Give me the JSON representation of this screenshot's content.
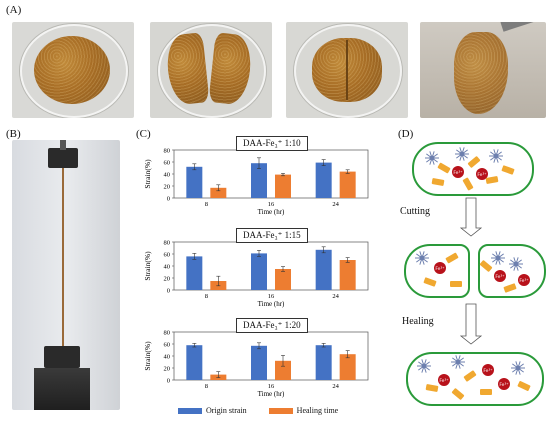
{
  "panels": {
    "A": "(A)",
    "B": "(B)",
    "C": "(C)",
    "D": "(D)"
  },
  "colors": {
    "origin": "#4472c4",
    "healing": "#ed7d31",
    "membrane": "#2a9a3a",
    "ferric": "#b8121b",
    "ligand": "#f0a830",
    "complex": "#6c7fae"
  },
  "charts": [
    {
      "title": "DAA-Fe₃⁺ 1:10",
      "ylabel": "Strain(%)",
      "xlabel": "Time (hr)",
      "yticks": [
        "0",
        "20",
        "40",
        "60",
        "80"
      ],
      "categories": [
        "8",
        "16",
        "24"
      ]
    },
    {
      "title": "DAA-Fe₃⁺ 1:15",
      "ylabel": "Strain(%)",
      "xlabel": "Time (hr)",
      "yticks": [
        "0",
        "20",
        "40",
        "60",
        "80"
      ],
      "categories": [
        "8",
        "16",
        "24"
      ]
    },
    {
      "title": "DAA-Fe₃⁺ 1:20",
      "ylabel": "Strain(%)",
      "xlabel": "Time (hr)",
      "yticks": [
        "0",
        "20",
        "40",
        "60",
        "80"
      ],
      "categories": [
        "8",
        "16",
        "24"
      ]
    }
  ],
  "legend": {
    "origin": "Origin strain",
    "healing": "Healing time"
  },
  "diagram": {
    "cutting": "Cutting",
    "healing": "Healing",
    "ion_label": "Fe³⁺"
  },
  "chart_data": [
    {
      "type": "bar",
      "title": "DAA-Fe₃⁺ 1:10",
      "categories": [
        "8",
        "16",
        "24"
      ],
      "xlabel": "Time (hr)",
      "ylabel": "Strain(%)",
      "ylim": [
        0,
        80
      ],
      "series": [
        {
          "name": "Origin strain",
          "values": [
            52,
            58,
            59
          ],
          "errors": [
            5,
            9,
            5
          ]
        },
        {
          "name": "Healing time",
          "values": [
            17,
            39,
            44
          ],
          "errors": [
            5,
            2,
            3
          ]
        }
      ]
    },
    {
      "type": "bar",
      "title": "DAA-Fe₃⁺ 1:15",
      "categories": [
        "8",
        "16",
        "24"
      ],
      "xlabel": "Time (hr)",
      "ylabel": "Strain(%)",
      "ylim": [
        0,
        80
      ],
      "series": [
        {
          "name": "Origin strain",
          "values": [
            56,
            61,
            67
          ],
          "errors": [
            5,
            5,
            5
          ]
        },
        {
          "name": "Healing time",
          "values": [
            15,
            35,
            50
          ],
          "errors": [
            8,
            4,
            4
          ]
        }
      ]
    },
    {
      "type": "bar",
      "title": "DAA-Fe₃⁺ 1:20",
      "categories": [
        "8",
        "16",
        "24"
      ],
      "xlabel": "Time (hr)",
      "ylabel": "Strain(%)",
      "ylim": [
        0,
        80
      ],
      "series": [
        {
          "name": "Origin strain",
          "values": [
            58,
            57,
            58
          ],
          "errors": [
            3,
            5,
            3
          ]
        },
        {
          "name": "Healing time",
          "values": [
            9,
            32,
            43
          ],
          "errors": [
            5,
            9,
            6
          ]
        }
      ]
    }
  ]
}
